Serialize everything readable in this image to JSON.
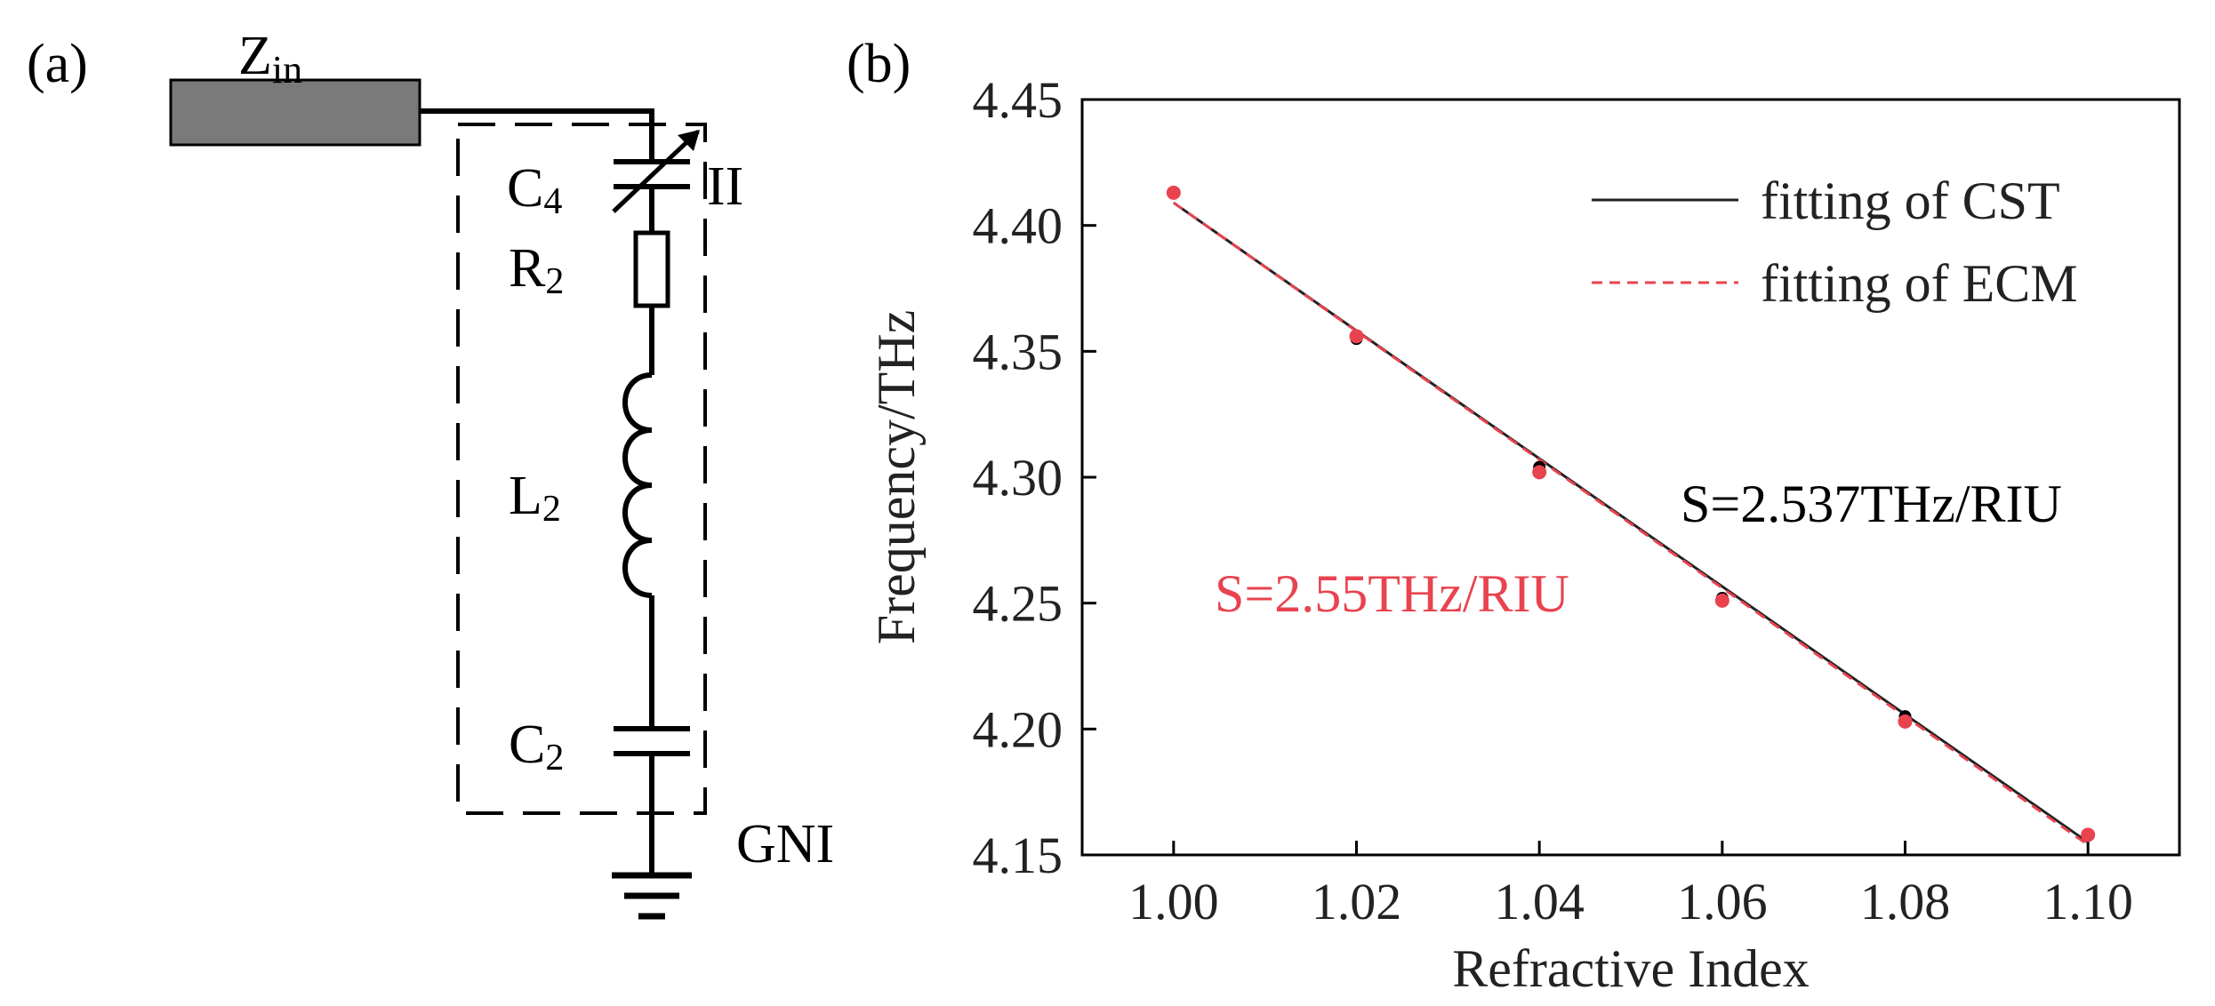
{
  "panel_a": {
    "label": "(a)",
    "z_in": {
      "main": "Z",
      "sub": "in"
    },
    "c4": {
      "main": "C",
      "sub": "4"
    },
    "r2": {
      "main": "R",
      "sub": "2"
    },
    "l2": {
      "main": "L",
      "sub": "2"
    },
    "c2": {
      "main": "C",
      "sub": "2"
    },
    "branch_label": "II",
    "gnd_label": "GNI",
    "colors": {
      "stroke": "#000000",
      "zin_fill": "#7a7a7a"
    }
  },
  "panel_b": {
    "label": "(b)"
  },
  "chart_data": {
    "type": "scatter",
    "xlabel": "Refractive Index",
    "ylabel": "Frequency/THz",
    "xlim": [
      0.99,
      1.11
    ],
    "ylim": [
      4.15,
      4.45
    ],
    "xticks": [
      1.0,
      1.02,
      1.04,
      1.06,
      1.08,
      1.1
    ],
    "xtick_labels": [
      "1.00",
      "1.02",
      "1.04",
      "1.06",
      "1.08",
      "1.10"
    ],
    "yticks": [
      4.15,
      4.2,
      4.25,
      4.3,
      4.35,
      4.4,
      4.45
    ],
    "ytick_labels": [
      "4.15",
      "4.20",
      "4.25",
      "4.30",
      "4.35",
      "4.40",
      "4.45"
    ],
    "grid": false,
    "legend_position": "top-right",
    "series": [
      {
        "name": "CST",
        "kind": "points",
        "color": "#000000",
        "x": [
          1.0,
          1.02,
          1.04,
          1.06,
          1.08,
          1.1
        ],
        "y": [
          4.413,
          4.355,
          4.304,
          4.252,
          4.205,
          4.158
        ]
      },
      {
        "name": "ECM",
        "kind": "points",
        "color": "#e8434f",
        "x": [
          1.0,
          1.02,
          1.04,
          1.06,
          1.08,
          1.1
        ],
        "y": [
          4.413,
          4.356,
          4.302,
          4.251,
          4.203,
          4.158
        ]
      },
      {
        "name": "fitting of CST",
        "kind": "line",
        "style": "solid",
        "color": "#222222",
        "x": [
          1.0,
          1.1
        ],
        "y": [
          4.409,
          4.155
        ]
      },
      {
        "name": "fitting of ECM",
        "kind": "line",
        "style": "dashed",
        "color": "#e8434f",
        "x": [
          1.0,
          1.1
        ],
        "y": [
          4.409,
          4.154
        ]
      }
    ],
    "legend": [
      {
        "label": "fitting of CST",
        "style": "solid",
        "color": "#222222"
      },
      {
        "label": "fitting of ECM",
        "style": "dashed",
        "color": "#e8434f"
      }
    ],
    "annotations": [
      {
        "id": "cst",
        "text": "S=2.537THz/RIU",
        "color": "#000000"
      },
      {
        "id": "ecm",
        "text": "S=2.55THz/RIU",
        "color": "#e8434f"
      }
    ]
  }
}
